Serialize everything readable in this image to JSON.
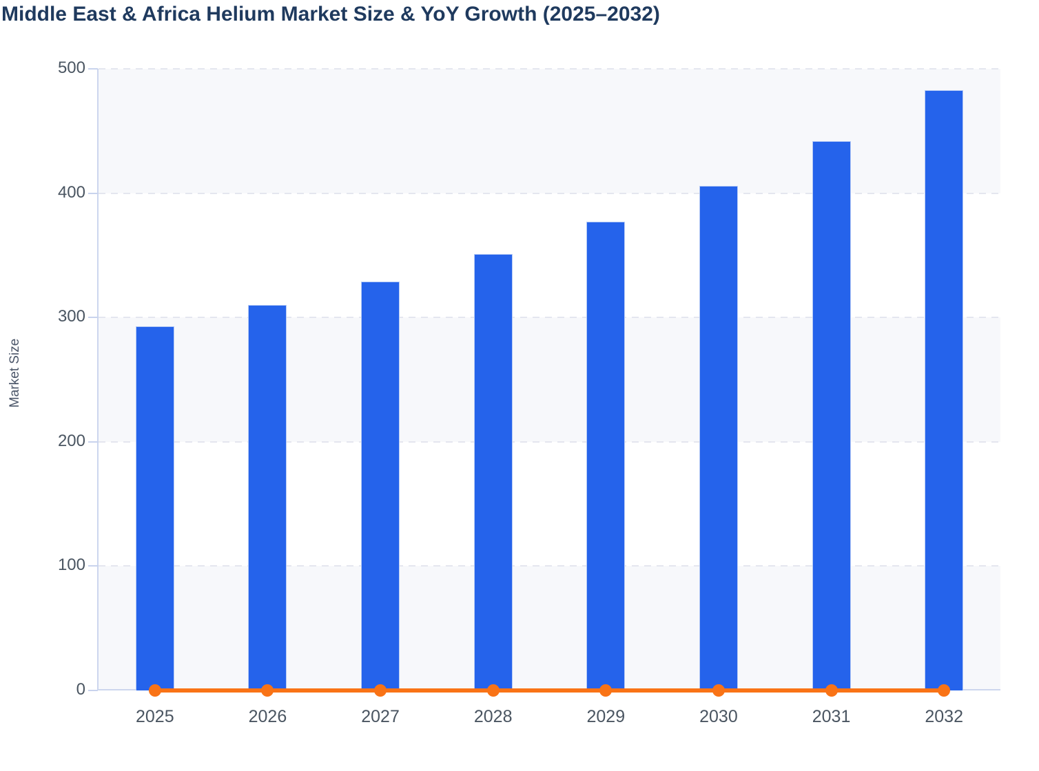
{
  "chart_data": {
    "type": "bar",
    "title": "Middle East & Africa Helium Market Size & YoY Growth (2025–2032)",
    "ylabel": "Market Size",
    "xlabel": "",
    "categories": [
      "2025",
      "2026",
      "2027",
      "2028",
      "2029",
      "2030",
      "2031",
      "2032"
    ],
    "series": [
      {
        "name": "Market Size",
        "type": "bar",
        "color": "#2563eb",
        "values": [
          293,
          310,
          329,
          351,
          377,
          406,
          442,
          483
        ]
      },
      {
        "name": "YoY Growth",
        "type": "line",
        "color": "#f97316",
        "values": [
          0,
          0,
          0,
          0,
          0,
          0,
          0,
          0
        ]
      }
    ],
    "ylim": [
      0,
      500
    ],
    "yticks": [
      0,
      100,
      200,
      300,
      400,
      500
    ],
    "grid": "horizontal-dashed",
    "legend": "none",
    "alternating_bands": true
  },
  "colors": {
    "bar": "#2563eb",
    "bar_border": "#b7cbf5",
    "line": "#f97316",
    "band": "#f7f8fb",
    "gridline": "#e4e6ef",
    "axis": "#ccd6ee",
    "tick_text": "#4a5561",
    "title_text": "#1f3a5e"
  }
}
